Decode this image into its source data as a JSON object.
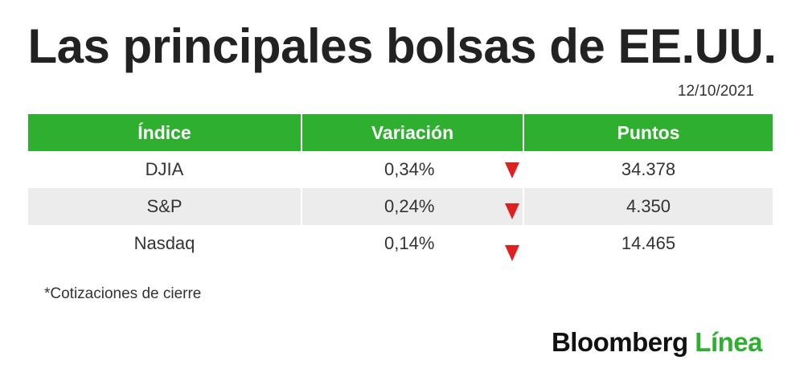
{
  "title": "Las principales bolsas de EE.UU.",
  "date": "12/10/2021",
  "table": {
    "headers": [
      "Índice",
      "Variación",
      "Puntos"
    ],
    "rows": [
      {
        "index": "DJIA",
        "variation": "0,34%",
        "direction": "down",
        "points": "34.378"
      },
      {
        "index": "S&P",
        "variation": "0,24%",
        "direction": "down",
        "points": "4.350"
      },
      {
        "index": "Nasdaq",
        "variation": "0,14%",
        "direction": "down",
        "points": "14.465"
      }
    ]
  },
  "footnote": "*Cotizaciones de cierre",
  "brand": {
    "part1": "Bloomberg",
    "part2": "Línea"
  },
  "colors": {
    "header": "#2faf2f",
    "down_arrow": "#e02020",
    "row_shade": "#ececec",
    "brand_accent": "#2faf2f"
  },
  "icons": {
    "down": "down-triangle-icon"
  }
}
